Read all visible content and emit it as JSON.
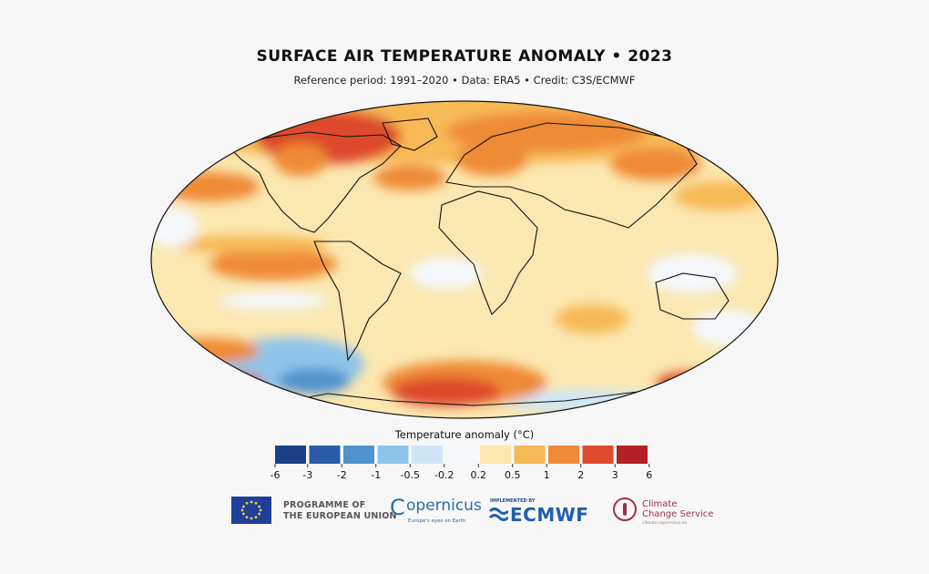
{
  "title": "SURFACE AIR TEMPERATURE ANOMALY • 2023",
  "subtitle": "Reference period: 1991–2020 • Data: ERA5 • Credit: C3S/ECMWF",
  "legend": {
    "title": "Temperature anomaly (°C)",
    "colors": [
      "#1b3f86",
      "#2a5ca8",
      "#4f93cf",
      "#8fc4ea",
      "#cde6f6",
      "#f4f8fb",
      "#fbe7b0",
      "#f7b955",
      "#ef8a35",
      "#dd4a2c",
      "#b52025"
    ],
    "ticks": [
      "-6",
      "-3",
      "-2",
      "-1",
      "-0.5",
      "-0.2",
      "0.2",
      "0.5",
      "1",
      "2",
      "3",
      "6"
    ]
  },
  "map_regions": [
    {
      "name": "arctic-canada",
      "anomaly": "2 to 3"
    },
    {
      "name": "eastern-canada",
      "anomaly": "2 to 3"
    },
    {
      "name": "siberia",
      "anomaly": "1 to 2"
    },
    {
      "name": "europe",
      "anomaly": "1 to 2"
    },
    {
      "name": "north-atlantic",
      "anomaly": "1 to 2"
    },
    {
      "name": "east-pacific-equatorial",
      "anomaly": "1 to 2"
    },
    {
      "name": "south-pacific",
      "anomaly": "-1 to -2"
    },
    {
      "name": "antarctica-weddell",
      "anomaly": "2 to 3"
    },
    {
      "name": "antarctica-ross",
      "anomaly": "-0.5 to -1"
    },
    {
      "name": "north-pacific",
      "anomaly": "0.5 to 1"
    }
  ],
  "logos": {
    "eu": "PROGRAMME OF THE EUROPEAN UNION",
    "eu_line1": "PROGRAMME OF",
    "eu_line2": "THE EUROPEAN UNION",
    "copernicus": "opernicus",
    "copernicus_tag": "Europe's eyes on Earth",
    "ecmwf_label": "IMPLEMENTED BY",
    "ecmwf": "ECMWF",
    "c3s_line1": "Climate",
    "c3s_line2": "Change Service",
    "c3s_tag": "climate.copernicus.eu"
  }
}
